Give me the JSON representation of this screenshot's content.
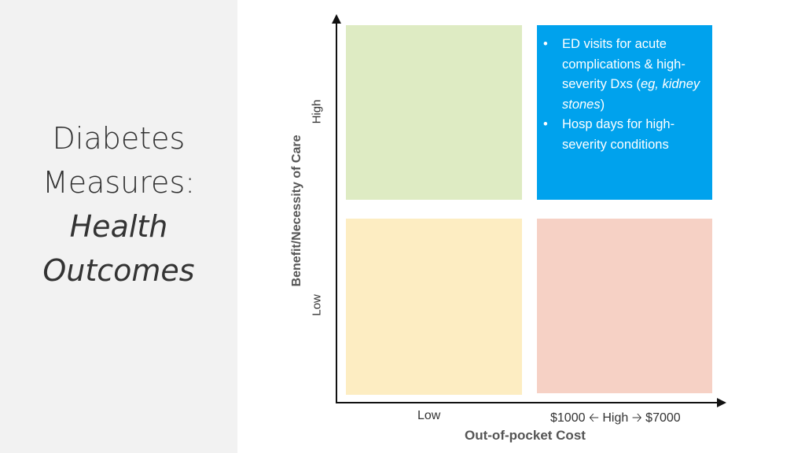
{
  "slide": {
    "title_line1": "Diabetes",
    "title_line2": "Measures:",
    "title_line3": "Health",
    "title_line4": "Outcomes"
  },
  "quadrants": {
    "top_left": {
      "color": "#deebc3"
    },
    "top_right": {
      "color": "#00a2ed",
      "bullet1_pre": "ED visits for acute complications & high-severity Dxs (",
      "bullet1_italic": "eg, kidney stones",
      "bullet1_post": ")",
      "bullet2": "Hosp days for high-severity conditions"
    },
    "bottom_left": {
      "color": "#fdedc2"
    },
    "bottom_right": {
      "color": "#f6d1c5"
    }
  },
  "axes": {
    "y_label": "Benefit/Necessity of Care",
    "y_high": "High",
    "y_low": "Low",
    "x_label": "Out-of-pocket Cost",
    "x_low": "Low",
    "x_high_left": "$1000",
    "x_high_mid": "High",
    "x_high_right": "$7000",
    "arrow_left_icon": "arrow-left-icon",
    "arrow_right_icon": "arrow-right-icon"
  }
}
